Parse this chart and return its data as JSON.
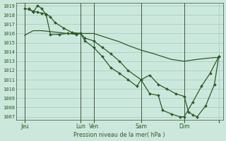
{
  "bg_color": "#cce8dc",
  "grid_color": "#99ccbb",
  "line_color": "#2d5a27",
  "xlabel_text": "Pression niveau de la mer( hPa )",
  "ylim": [
    1007,
    1019
  ],
  "yticks": [
    1007,
    1008,
    1009,
    1010,
    1011,
    1012,
    1013,
    1014,
    1015,
    1016,
    1017,
    1018,
    1019
  ],
  "xlim": [
    0,
    24
  ],
  "xtick_positions": [
    1.0,
    7.5,
    9.0,
    14.5,
    19.5,
    23.5
  ],
  "xtick_labels": [
    "Jeu",
    "Lun",
    "Ven",
    "Sam",
    "Dim",
    ""
  ],
  "vline_positions": [
    1.0,
    7.5,
    9.0,
    14.5,
    19.5
  ],
  "line1": {
    "x": [
      1.0,
      2.0,
      3.0,
      4.0,
      5.0,
      6.0,
      7.5,
      9.0,
      10.0,
      11.0,
      12.0,
      13.0,
      14.5,
      16.0,
      17.0,
      18.0,
      19.5,
      21.0,
      22.0,
      23.0,
      23.5
    ],
    "y": [
      1015.8,
      1016.3,
      1016.3,
      1016.2,
      1016.1,
      1016.0,
      1016.0,
      1016.0,
      1015.7,
      1015.4,
      1015.1,
      1014.7,
      1014.2,
      1013.8,
      1013.5,
      1013.2,
      1013.0,
      1013.2,
      1013.3,
      1013.4,
      1013.4
    ]
  },
  "line2": {
    "x": [
      1.0,
      1.5,
      2.0,
      2.5,
      3.0,
      3.5,
      4.0,
      4.5,
      5.5,
      6.5,
      7.5,
      8.0,
      9.0,
      10.0,
      11.0,
      12.0,
      13.0,
      14.5,
      15.5,
      16.5,
      17.5,
      18.5,
      19.5,
      20.0,
      20.5,
      21.0,
      22.0,
      23.0,
      23.5
    ],
    "y": [
      1018.7,
      1018.6,
      1018.4,
      1018.3,
      1018.2,
      1018.1,
      1017.8,
      1017.2,
      1016.6,
      1016.1,
      1016.0,
      1015.5,
      1015.2,
      1014.5,
      1013.8,
      1013.0,
      1012.0,
      1011.0,
      1011.5,
      1010.5,
      1010.0,
      1009.5,
      1009.2,
      1007.5,
      1007.2,
      1007.0,
      1008.2,
      1010.5,
      1013.5
    ]
  },
  "line3": {
    "x": [
      1.5,
      2.0,
      2.5,
      3.0,
      3.5,
      4.0,
      5.0,
      6.0,
      7.0,
      7.5,
      8.0,
      9.0,
      10.0,
      11.0,
      12.0,
      13.0,
      14.0,
      14.5,
      15.5,
      16.5,
      17.0,
      18.0,
      19.0,
      19.5,
      20.5,
      21.5,
      22.5,
      23.5
    ],
    "y": [
      1018.7,
      1018.3,
      1019.0,
      1018.7,
      1018.0,
      1015.9,
      1015.9,
      1016.0,
      1015.9,
      1016.0,
      1015.2,
      1014.5,
      1013.5,
      1012.3,
      1011.7,
      1011.0,
      1010.3,
      1011.0,
      1009.5,
      1009.3,
      1007.7,
      1007.3,
      1007.0,
      1007.0,
      1008.6,
      1010.3,
      1011.7,
      1013.5
    ]
  }
}
